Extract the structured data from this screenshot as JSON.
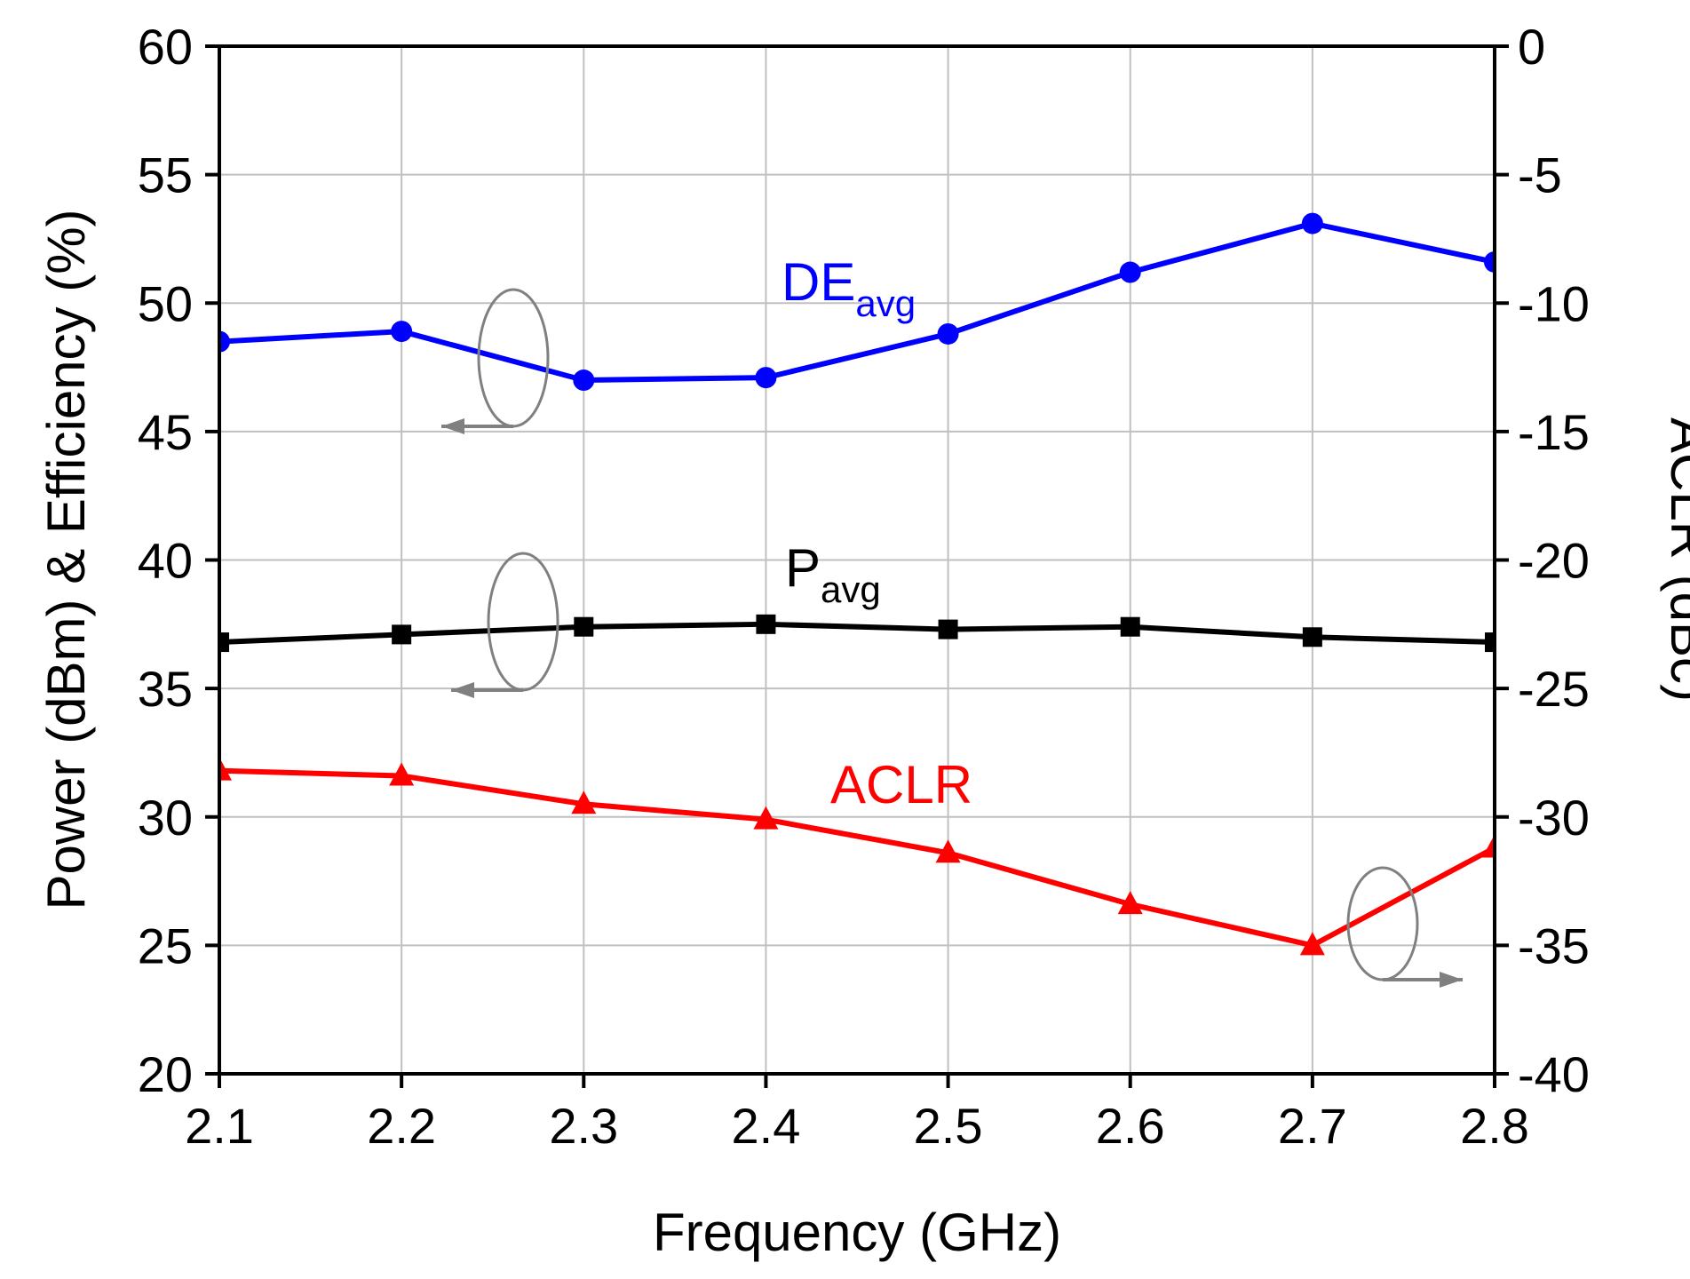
{
  "chart_data": {
    "type": "line",
    "x": [
      2.1,
      2.2,
      2.3,
      2.4,
      2.5,
      2.6,
      2.7,
      2.8
    ],
    "xlabel": "Frequency (GHz)",
    "ylabel": "Power (dBm) & Efficiency (%)",
    "y2label": "ACLR (dBc)",
    "xlim": [
      2.1,
      2.8
    ],
    "ylim": [
      20,
      60
    ],
    "y2lim": [
      -40,
      0
    ],
    "xticks": [
      "2.1",
      "2.2",
      "2.3",
      "2.4",
      "2.5",
      "2.6",
      "2.7",
      "2.8"
    ],
    "yticks": [
      "20",
      "25",
      "30",
      "35",
      "40",
      "45",
      "50",
      "55",
      "60"
    ],
    "y2ticks": [
      "-40",
      "-35",
      "-30",
      "-25",
      "-20",
      "-15",
      "-10",
      "-5",
      "0"
    ],
    "grid": true,
    "series": [
      {
        "name": "DE",
        "subscript": "avg",
        "axis": "left",
        "marker": "circle",
        "color": "#0000ff",
        "values": [
          48.5,
          48.9,
          47.0,
          47.1,
          48.8,
          51.2,
          53.1,
          51.6
        ]
      },
      {
        "name": "P",
        "subscript": "avg",
        "axis": "left",
        "marker": "square",
        "color": "#000000",
        "values": [
          36.8,
          37.1,
          37.4,
          37.5,
          37.3,
          37.4,
          37.0,
          36.8
        ]
      },
      {
        "name": "ACLR",
        "subscript": "",
        "axis": "right",
        "marker": "triangle",
        "color": "#ff0000",
        "values": [
          -28.2,
          -28.4,
          -29.5,
          -30.1,
          -31.4,
          -33.4,
          -35.0,
          -31.2
        ]
      }
    ],
    "annotation_color": "#808080",
    "grid_color": "#c0c0c0"
  }
}
